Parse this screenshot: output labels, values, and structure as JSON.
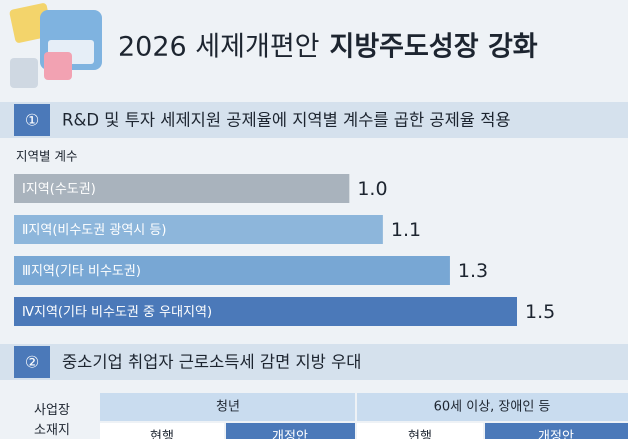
{
  "header": {
    "title_regular": "2026 세제개편안",
    "title_bold": "지방주도성장 강화"
  },
  "section1": {
    "number": "①",
    "title": "R&D 및 투자 세제지원 공제율에 지역별 계수를 곱한 공제율 적용"
  },
  "chart_data": {
    "type": "bar",
    "subtitle": "지역별 계수",
    "categories": [
      "Ⅰ지역(수도권)",
      "Ⅱ지역(비수도권 광역시 등)",
      "Ⅲ지역(기타 비수도권)",
      "Ⅳ지역(기타 비수도권 중 우대지역)"
    ],
    "values": [
      1.0,
      1.1,
      1.3,
      1.5
    ],
    "value_labels": [
      "1.0",
      "1.1",
      "1.3",
      "1.5"
    ],
    "colors": [
      "#a9b3bd",
      "#8db6db",
      "#78a7d4",
      "#4b79b9"
    ]
  },
  "section2": {
    "number": "②",
    "title": "중소기업 취업자 근로소득세 감면 지방 우대"
  },
  "table": {
    "row_header": "사업장 소재지",
    "groups": [
      "청년",
      "60세 이상, 장애인 등"
    ],
    "columns": [
      "현행",
      "개정안",
      "현행",
      "개정안"
    ]
  }
}
